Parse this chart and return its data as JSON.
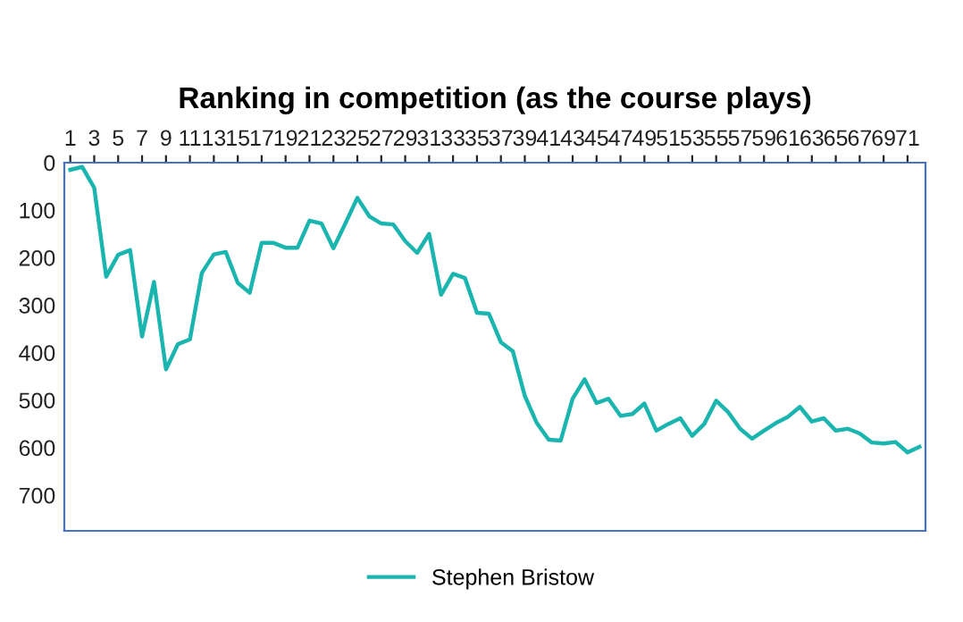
{
  "chart_data": {
    "type": "line",
    "title": "Ranking in competition (as the course plays)",
    "categories": [
      "1",
      null,
      "3",
      null,
      "5",
      null,
      "7",
      null,
      "9",
      null,
      "11",
      null,
      "13",
      null,
      "15",
      null,
      "17",
      null,
      "19",
      null,
      "21",
      null,
      "23",
      null,
      "25",
      null,
      "27",
      null,
      "29",
      null,
      "31",
      null,
      "33",
      null,
      "35",
      null,
      "37",
      null,
      "39",
      null,
      "41",
      null,
      "43",
      null,
      "45",
      null,
      "47",
      null,
      "49",
      null,
      "51",
      null,
      "53",
      null,
      "55",
      null,
      "57",
      null,
      "59",
      null,
      "61",
      null,
      "63",
      null,
      "65",
      null,
      "67",
      null,
      "69",
      null,
      "71",
      null
    ],
    "series": [
      {
        "name": "Stephen Bristow",
        "color": "#1bb5b0",
        "values": [
          15,
          9,
          53,
          240,
          194,
          184,
          366,
          251,
          435,
          382,
          372,
          232,
          193,
          188,
          253,
          274,
          169,
          169,
          179,
          179,
          122,
          128,
          180,
          128,
          74,
          113,
          128,
          130,
          165,
          190,
          150,
          278,
          234,
          243,
          316,
          318,
          378,
          397,
          491,
          548,
          583,
          585,
          497,
          456,
          506,
          497,
          533,
          529,
          507,
          564,
          550,
          538,
          575,
          550,
          501,
          525,
          560,
          581,
          564,
          548,
          535,
          514,
          545,
          538,
          564,
          560,
          570,
          589,
          591,
          588,
          610,
          598
        ]
      }
    ],
    "ylim": [
      775,
      0
    ],
    "yticks": [
      0,
      100,
      200,
      300,
      400,
      500,
      600,
      700
    ],
    "grid": false,
    "legend": "bottom",
    "marker": "none",
    "line_style": "solid"
  }
}
